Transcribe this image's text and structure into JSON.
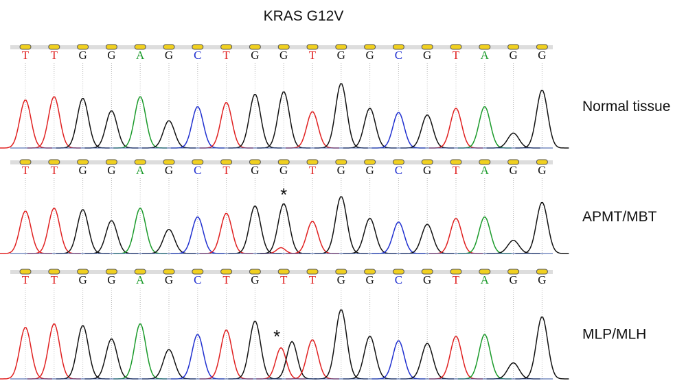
{
  "title": "KRAS G12V",
  "panels": [
    {
      "label": "Normal tissue",
      "bases": [
        "T",
        "T",
        "G",
        "G",
        "A",
        "G",
        "C",
        "T",
        "G",
        "G",
        "T",
        "G",
        "G",
        "C",
        "G",
        "T",
        "A",
        "G",
        "G"
      ]
    },
    {
      "label": "APMT/MBT",
      "bases": [
        "T",
        "T",
        "G",
        "G",
        "A",
        "G",
        "C",
        "T",
        "G",
        "G",
        "T",
        "G",
        "G",
        "C",
        "G",
        "T",
        "A",
        "G",
        "G"
      ],
      "mark": "*"
    },
    {
      "label": "MLP/MLH",
      "bases": [
        "T",
        "T",
        "G",
        "G",
        "A",
        "G",
        "C",
        "T",
        "G",
        "T",
        "T",
        "G",
        "G",
        "C",
        "G",
        "T",
        "A",
        "G",
        "G"
      ],
      "mark": "*"
    }
  ]
}
